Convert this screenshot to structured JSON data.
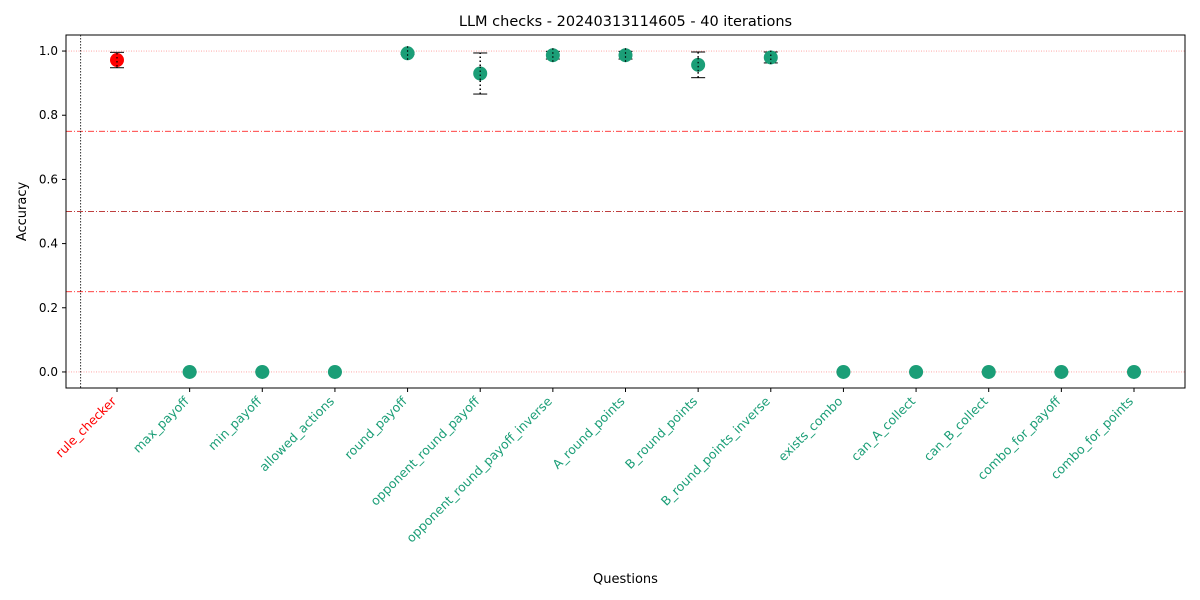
{
  "chart_data": {
    "type": "scatter",
    "title": "LLM checks - 20240313114605 - 40 iterations",
    "xlabel": "Questions",
    "ylabel": "Accuracy",
    "ylim": [
      -0.05,
      1.05
    ],
    "yticks": [
      0.0,
      0.2,
      0.4,
      0.6,
      0.8,
      1.0
    ],
    "ytick_labels": [
      "0.0",
      "0.2",
      "0.4",
      "0.6",
      "0.8",
      "1.0"
    ],
    "categories": [
      "rule_checker",
      "max_payoff",
      "min_payoff",
      "allowed_actions",
      "round_payoff",
      "opponent_round_payoff",
      "opponent_round_payoff_inverse",
      "A_round_points",
      "B_round_points",
      "B_round_points_inverse",
      "exists_combo",
      "can_A_collect",
      "can_B_collect",
      "combo_for_payoff",
      "combo_for_points"
    ],
    "values": [
      0.972,
      0.0,
      0.0,
      0.0,
      0.993,
      0.93,
      0.987,
      0.987,
      0.957,
      0.98,
      0.0,
      0.0,
      0.0,
      0.0,
      0.0
    ],
    "ci_low": [
      0.948,
      0.0,
      0.0,
      0.0,
      0.99,
      0.866,
      0.975,
      0.975,
      0.917,
      0.963,
      0.0,
      0.0,
      0.0,
      0.0,
      0.0
    ],
    "ci_high": [
      0.996,
      0.0,
      0.0,
      0.0,
      0.996,
      0.994,
      0.999,
      0.999,
      0.997,
      0.997,
      0.0,
      0.0,
      0.0,
      0.0,
      0.0
    ],
    "point_colors": [
      "#ff0000",
      "#1b9e77",
      "#1b9e77",
      "#1b9e77",
      "#1b9e77",
      "#1b9e77",
      "#1b9e77",
      "#1b9e77",
      "#1b9e77",
      "#1b9e77",
      "#1b9e77",
      "#1b9e77",
      "#1b9e77",
      "#1b9e77",
      "#1b9e77"
    ],
    "reference_lines": [
      {
        "y": 0.0,
        "style": "dotted",
        "color": "#ff9999"
      },
      {
        "y": 0.25,
        "style": "dashdot",
        "color": "#ff0000"
      },
      {
        "y": 0.5,
        "style": "dashdot",
        "color": "#aa0000"
      },
      {
        "y": 0.75,
        "style": "dashdot",
        "color": "#ff0000"
      },
      {
        "y": 1.0,
        "style": "dotted",
        "color": "#ff9999"
      }
    ],
    "separator_after_category": 0,
    "grid": false,
    "legend": "none"
  }
}
